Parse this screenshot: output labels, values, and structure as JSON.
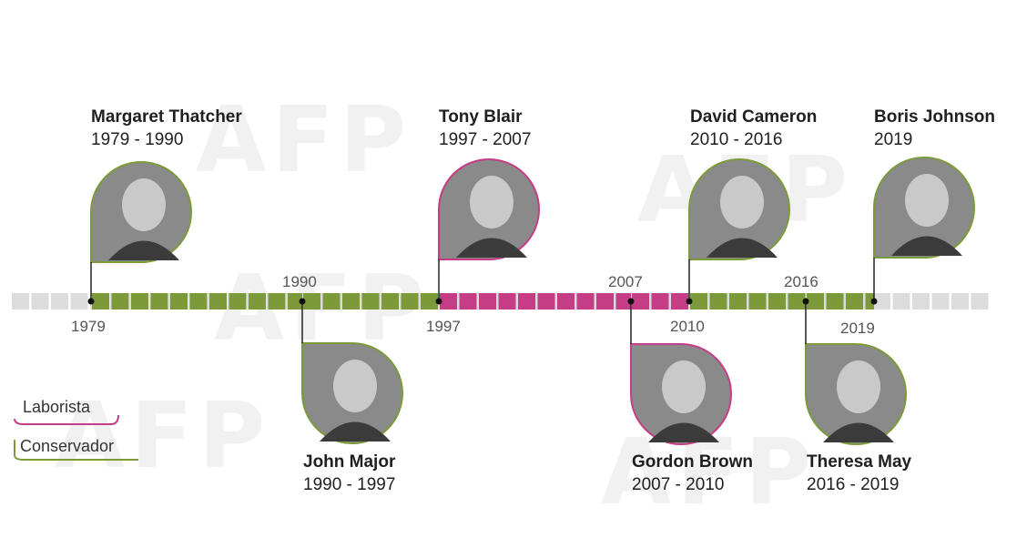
{
  "colors": {
    "laborista": "#c43d85",
    "conservador": "#7d9a3a",
    "track": "#dcdcdc",
    "photo_bg": "#8a8a8a"
  },
  "legend": {
    "laborista": "Laborista",
    "conservador": "Conservador"
  },
  "watermark": "AFP",
  "timeline": {
    "ticks": [
      {
        "label": "1979",
        "year": 1979,
        "side": "below"
      },
      {
        "label": "1990",
        "year": 1990,
        "side": "above"
      },
      {
        "label": "1997",
        "year": 1997,
        "side": "below"
      },
      {
        "label": "2007",
        "year": 2007,
        "side": "above"
      },
      {
        "label": "2010",
        "year": 2010,
        "side": "below"
      },
      {
        "label": "2016",
        "year": 2016,
        "side": "above"
      },
      {
        "label": "2019",
        "year": 2019,
        "side": "below"
      }
    ]
  },
  "prime_ministers": [
    {
      "name": "Margaret Thatcher",
      "years": "1979 - 1990",
      "party": "conservador",
      "start": 1979,
      "end": 1990
    },
    {
      "name": "John Major",
      "years": "1990 - 1997",
      "party": "conservador",
      "start": 1990,
      "end": 1997
    },
    {
      "name": "Tony Blair",
      "years": "1997 - 2007",
      "party": "laborista",
      "start": 1997,
      "end": 2007
    },
    {
      "name": "Gordon Brown",
      "years": "2007 - 2010",
      "party": "laborista",
      "start": 2007,
      "end": 2010
    },
    {
      "name": "David Cameron",
      "years": "2010 - 2016",
      "party": "conservador",
      "start": 2010,
      "end": 2016
    },
    {
      "name": "Theresa May",
      "years": "2016 - 2019",
      "party": "conservador",
      "start": 2016,
      "end": 2019
    },
    {
      "name": "Boris Johnson",
      "years": "2019",
      "party": "conservador",
      "start": 2019,
      "end": null
    }
  ]
}
